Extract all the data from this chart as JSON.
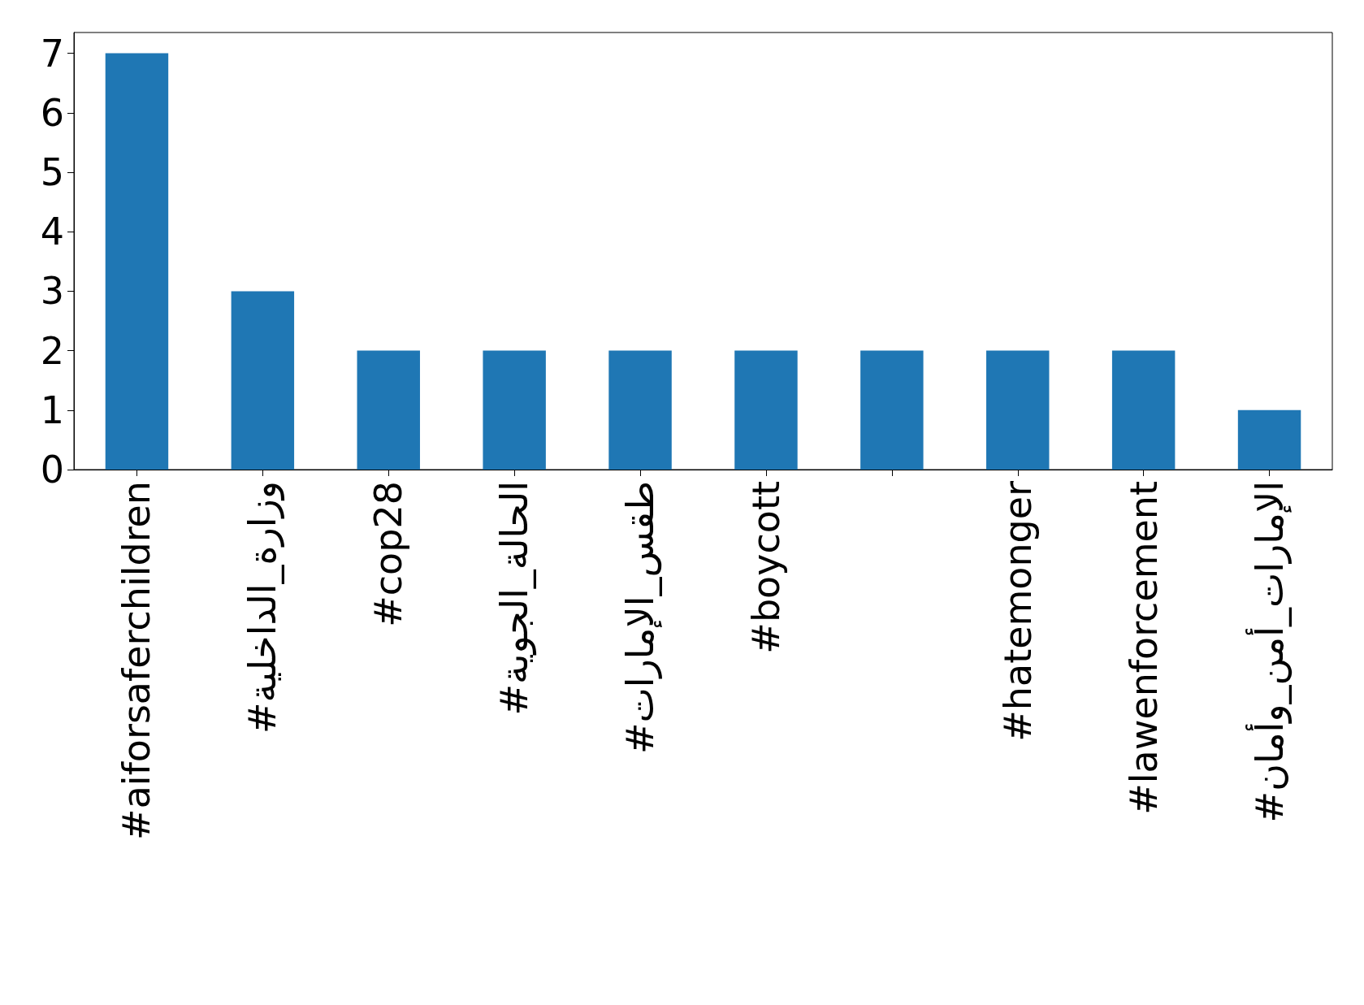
{
  "chart_data": {
    "type": "bar",
    "categories": [
      "#aiforsaferchildren",
      "#وزارة_الداخلية",
      "#cop28",
      "#الحالة_الجوية",
      "#طقس_الإمارات",
      "#boycott",
      null,
      "#hatemonger",
      "#lawenforcement",
      "#الإمارات_أمن_وأمان"
    ],
    "values": [
      7,
      3,
      2,
      2,
      2,
      2,
      2,
      2,
      2,
      1
    ],
    "color": "#1f77b4",
    "ylim": [
      0,
      7.35
    ],
    "yticks": [
      0,
      1,
      2,
      3,
      4,
      5,
      6,
      7
    ],
    "grid": false
  }
}
